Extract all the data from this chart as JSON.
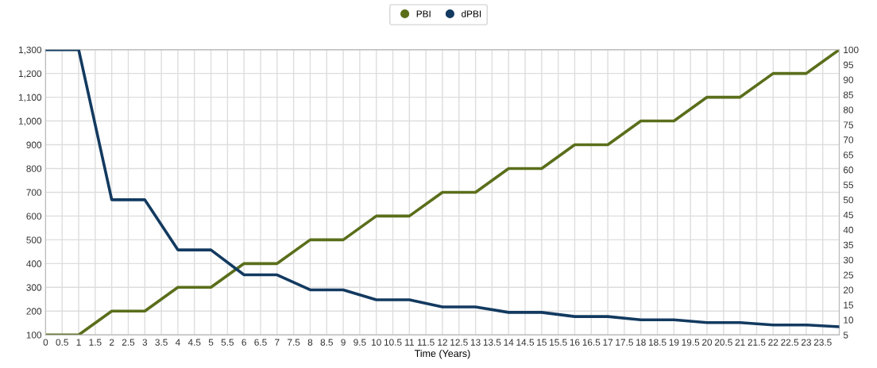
{
  "chart_data": {
    "type": "line",
    "xlabel": "Time (Years)",
    "x": [
      0,
      1,
      2,
      3,
      4,
      5,
      6,
      7,
      8,
      9,
      10,
      11,
      12,
      13,
      14,
      15,
      16,
      17,
      18,
      19,
      20,
      21,
      22,
      23,
      24
    ],
    "series": [
      {
        "name": "PBI",
        "color": "#5a6e1a",
        "values": [
          100,
          100,
          200,
          200,
          300,
          300,
          400,
          400,
          500,
          500,
          600,
          600,
          700,
          700,
          800,
          800,
          900,
          900,
          1000,
          1000,
          1100,
          1100,
          1200,
          1200,
          1300
        ]
      },
      {
        "name": "dPBI",
        "color": "#133a60",
        "axis": "y2",
        "values": [
          100,
          100,
          50,
          50,
          33.3,
          33.3,
          25,
          25,
          20,
          20,
          16.7,
          16.7,
          14.3,
          14.3,
          12.5,
          12.5,
          11.1,
          11.1,
          10,
          10,
          9.1,
          9.1,
          8.3,
          8.3,
          7.7
        ]
      }
    ],
    "xlim": [
      0,
      24
    ],
    "xticks": [
      0,
      0.5,
      1,
      1.5,
      2,
      2.5,
      3,
      3.5,
      4,
      4.5,
      5,
      5.5,
      6,
      6.5,
      7,
      7.5,
      8,
      8.5,
      9,
      9.5,
      10,
      10.5,
      11,
      11.5,
      12,
      12.5,
      13,
      13.5,
      14,
      14.5,
      15,
      15.5,
      16,
      16.5,
      17,
      17.5,
      18,
      18.5,
      19,
      19.5,
      20,
      20.5,
      21,
      21.5,
      22,
      22.5,
      23,
      23.5,
      {
        "value": 24,
        "label": null
      }
    ],
    "ylim": [
      100,
      1300
    ],
    "yticks": [
      100,
      200,
      300,
      400,
      500,
      600,
      700,
      800,
      900,
      {
        "value": 1000,
        "label": "1,000"
      },
      {
        "value": 1100,
        "label": "1,100"
      },
      {
        "value": 1200,
        "label": "1,200"
      },
      {
        "value": 1300,
        "label": "1,300"
      }
    ],
    "y2lim": [
      5,
      100
    ],
    "y2ticks": [
      5,
      10,
      15,
      20,
      25,
      30,
      35,
      40,
      45,
      50,
      55,
      60,
      65,
      70,
      75,
      80,
      85,
      90,
      95,
      100
    ],
    "grid": true,
    "legend": "top",
    "marker": "none",
    "line_style": "solid"
  }
}
